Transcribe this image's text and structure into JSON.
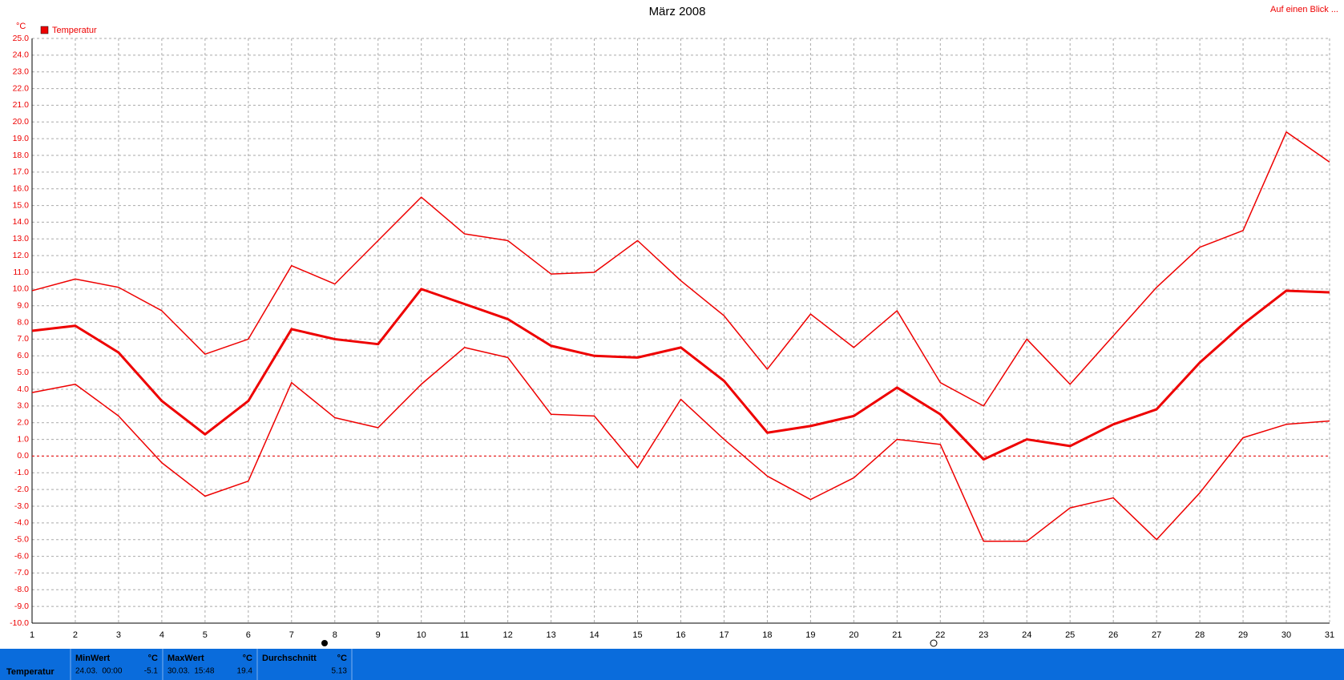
{
  "chart_data": {
    "type": "line",
    "title": "März 2008",
    "y_label": "°C",
    "legend_label": "Temperatur",
    "legend_color": "#ee0000",
    "x": [
      1,
      2,
      3,
      4,
      5,
      6,
      7,
      8,
      9,
      10,
      11,
      12,
      13,
      14,
      15,
      16,
      17,
      18,
      19,
      20,
      21,
      22,
      23,
      24,
      25,
      26,
      27,
      28,
      29,
      30,
      31
    ],
    "xlim": [
      1,
      31
    ],
    "xticks": [
      1,
      2,
      3,
      4,
      5,
      6,
      7,
      8,
      9,
      10,
      11,
      12,
      13,
      14,
      15,
      16,
      17,
      18,
      19,
      20,
      21,
      22,
      23,
      24,
      25,
      26,
      27,
      28,
      29,
      30,
      31
    ],
    "ylim": [
      -10,
      25
    ],
    "yticks": [
      {
        "value": 25,
        "label": "25.0"
      },
      {
        "value": 24,
        "label": "24.0"
      },
      {
        "value": 23,
        "label": "23.0"
      },
      {
        "value": 22,
        "label": "22.0"
      },
      {
        "value": 21,
        "label": "21.0"
      },
      {
        "value": 20,
        "label": "20.0"
      },
      {
        "value": 19,
        "label": "19.0"
      },
      {
        "value": 18,
        "label": "18.0"
      },
      {
        "value": 17,
        "label": "17.0"
      },
      {
        "value": 16,
        "label": "16.0"
      },
      {
        "value": 15,
        "label": "15.0"
      },
      {
        "value": 14,
        "label": "14.0"
      },
      {
        "value": 13,
        "label": "13.0"
      },
      {
        "value": 12,
        "label": "12.0"
      },
      {
        "value": 11,
        "label": "11.0"
      },
      {
        "value": 10,
        "label": "10.0"
      },
      {
        "value": 9,
        "label": "9.0"
      },
      {
        "value": 8,
        "label": "8.0"
      },
      {
        "value": 7,
        "label": "7.0"
      },
      {
        "value": 6,
        "label": "6.0"
      },
      {
        "value": 5,
        "label": "5.0"
      },
      {
        "value": 4,
        "label": "4.0"
      },
      {
        "value": 3,
        "label": "3.0"
      },
      {
        "value": 2,
        "label": "2.0"
      },
      {
        "value": 1,
        "label": "1.0"
      },
      {
        "value": 0,
        "label": "0.0"
      },
      {
        "value": -1,
        "label": "-1.0"
      },
      {
        "value": -2,
        "label": "-2.0"
      },
      {
        "value": -3,
        "label": "-3.0"
      },
      {
        "value": -4,
        "label": "-4.0"
      },
      {
        "value": -5,
        "label": "-5.0"
      },
      {
        "value": -6,
        "label": "-6.0"
      },
      {
        "value": -7,
        "label": "-7.0"
      },
      {
        "value": -8,
        "label": "-8.0"
      },
      {
        "value": -9,
        "label": "-9.0"
      },
      {
        "value": -10,
        "label": "-10.0"
      }
    ],
    "grid": true,
    "zero_line": true,
    "series": [
      {
        "color": "#ee0000",
        "width": 1.5,
        "values": [
          9.9,
          10.6,
          10.1,
          8.7,
          6.1,
          7.0,
          11.4,
          10.3,
          12.9,
          15.5,
          13.3,
          12.9,
          10.9,
          11.0,
          12.9,
          10.5,
          8.4,
          5.2,
          8.5,
          6.5,
          8.7,
          4.4,
          3.0,
          7.0,
          4.3,
          7.2,
          10.1,
          12.5,
          13.5,
          19.4,
          17.6
        ]
      },
      {
        "color": "#ee0000",
        "width": 3,
        "values": [
          7.5,
          7.8,
          6.2,
          3.3,
          1.3,
          3.3,
          7.6,
          7.0,
          6.7,
          10.0,
          9.1,
          8.2,
          6.6,
          6.0,
          5.9,
          6.5,
          4.5,
          1.4,
          1.8,
          2.4,
          4.1,
          2.5,
          -0.2,
          1.0,
          0.6,
          1.9,
          2.8,
          5.6,
          7.9,
          9.9,
          9.8
        ]
      },
      {
        "color": "#ee0000",
        "width": 1.5,
        "values": [
          3.8,
          4.3,
          2.4,
          -0.4,
          -2.4,
          -1.5,
          4.4,
          2.3,
          1.7,
          4.3,
          6.5,
          5.9,
          2.5,
          2.4,
          -0.7,
          3.4,
          1.0,
          -1.2,
          -2.6,
          -1.3,
          1.0,
          0.7,
          -5.1,
          -5.1,
          -3.1,
          -2.5,
          -5.0,
          -2.2,
          1.1,
          1.9,
          2.1
        ]
      }
    ]
  },
  "header": {
    "link": "Auf einen Blick ..."
  },
  "summary": {
    "row_label": "Temperatur",
    "cells": [
      {
        "label": "MinWert",
        "unit": "°C",
        "time": "24.03.  00:00",
        "value": -5.1
      },
      {
        "label": "MaxWert",
        "unit": "°C",
        "time": "30.03.  15:48",
        "value": 19.4
      },
      {
        "label": "Durchschnitt",
        "unit": "°C",
        "value": 5.13
      }
    ]
  }
}
